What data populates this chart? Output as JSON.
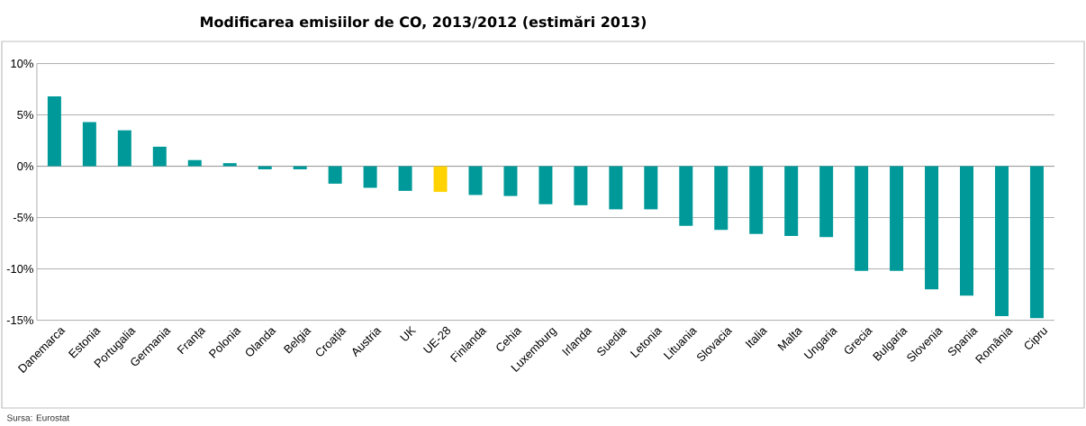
{
  "chart_data": {
    "type": "bar",
    "title": "Modificarea emisiilor de CO, 2013/2012 (estimări 2013)",
    "categories": [
      "Danemarca",
      "Estonia",
      "Portugalia",
      "Germania",
      "Franța",
      "Polonia",
      "Olanda",
      "Belgia",
      "Croația",
      "Austria",
      "UK",
      "UE-28",
      "Finlanda",
      "Cehia",
      "Luxemburg",
      "Irlanda",
      "Suedia",
      "Letonia",
      "Lituania",
      "Slovacia",
      "Italia",
      "Malta",
      "Ungaria",
      "Grecia",
      "Bulgaria",
      "Slovenia",
      "Spania",
      "România",
      "Cipru"
    ],
    "values": [
      6.8,
      4.3,
      3.5,
      1.9,
      0.6,
      0.3,
      -0.3,
      -0.3,
      -1.7,
      -2.1,
      -2.4,
      -2.5,
      -2.8,
      -2.9,
      -3.7,
      -3.8,
      -4.2,
      -4.2,
      -5.8,
      -6.2,
      -6.6,
      -6.8,
      -6.9,
      -10.2,
      -10.2,
      -12.0,
      -12.6,
      -14.6,
      -14.8
    ],
    "colors": [
      "#009999",
      "#009999",
      "#009999",
      "#009999",
      "#009999",
      "#009999",
      "#009999",
      "#009999",
      "#009999",
      "#009999",
      "#009999",
      "#ffd200",
      "#009999",
      "#009999",
      "#009999",
      "#009999",
      "#009999",
      "#009999",
      "#009999",
      "#009999",
      "#009999",
      "#009999",
      "#009999",
      "#009999",
      "#009999",
      "#009999",
      "#009999",
      "#009999",
      "#009999"
    ],
    "ylim": [
      -15,
      10
    ],
    "yticks": [
      {
        "value": -15,
        "label": "-15%"
      },
      {
        "value": -10,
        "label": "-10%"
      },
      {
        "value": -5,
        "label": "-5%"
      },
      {
        "value": 0,
        "label": "0%"
      },
      {
        "value": 5,
        "label": "5%"
      },
      {
        "value": 10,
        "label": "10%"
      }
    ],
    "grid": "y",
    "annotations": [
      "Sursa: Eurostat"
    ]
  }
}
